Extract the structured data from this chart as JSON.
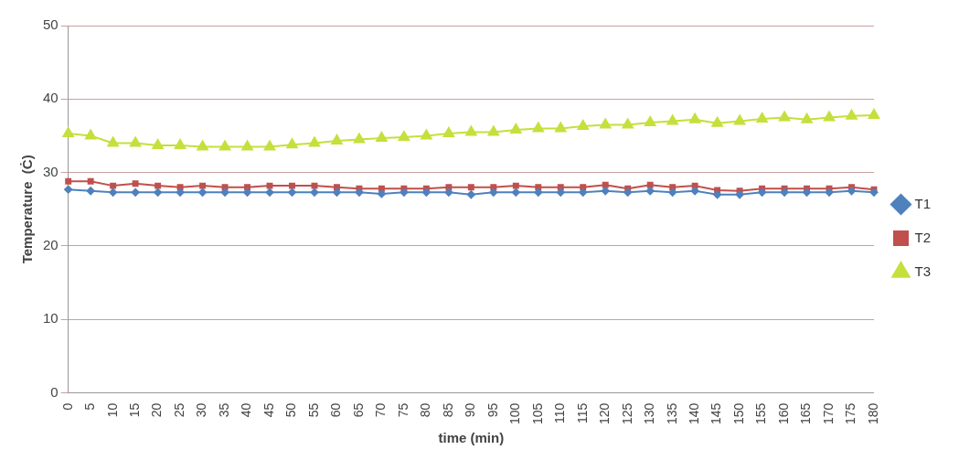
{
  "chart_data": {
    "type": "line",
    "xlabel": "time (min)",
    "ylabel": "Temperature  (Ċ)",
    "categories": [
      "0",
      "5",
      "10",
      "15",
      "20",
      "25",
      "30",
      "35",
      "40",
      "45",
      "50",
      "55",
      "60",
      "65",
      "70",
      "75",
      "80",
      "85",
      "90",
      "95",
      "100",
      "105",
      "110",
      "115",
      "120",
      "125",
      "130",
      "135",
      "140",
      "145",
      "150",
      "155",
      "160",
      "165",
      "170",
      "175",
      "180"
    ],
    "series": [
      {
        "name": "T1",
        "color": "#4f81bd",
        "marker": "diamond",
        "values": [
          27.7,
          27.5,
          27.3,
          27.3,
          27.3,
          27.3,
          27.3,
          27.3,
          27.3,
          27.3,
          27.3,
          27.3,
          27.3,
          27.3,
          27.1,
          27.3,
          27.3,
          27.3,
          27.0,
          27.3,
          27.3,
          27.3,
          27.3,
          27.3,
          27.5,
          27.3,
          27.5,
          27.3,
          27.5,
          27.0,
          27.0,
          27.3,
          27.3,
          27.3,
          27.3,
          27.5,
          27.3
        ]
      },
      {
        "name": "T2",
        "color": "#c0504d",
        "marker": "square",
        "values": [
          28.8,
          28.8,
          28.2,
          28.5,
          28.2,
          28.0,
          28.2,
          28.0,
          28.0,
          28.2,
          28.2,
          28.2,
          28.0,
          27.8,
          27.8,
          27.8,
          27.8,
          28.0,
          28.0,
          28.0,
          28.2,
          28.0,
          28.0,
          28.0,
          28.3,
          27.8,
          28.3,
          28.0,
          28.2,
          27.6,
          27.5,
          27.8,
          27.8,
          27.8,
          27.8,
          28.0,
          27.7
        ]
      },
      {
        "name": "T3",
        "color": "#c4e03c",
        "marker": "triangle",
        "values": [
          35.3,
          35.0,
          34.0,
          34.0,
          33.7,
          33.7,
          33.5,
          33.5,
          33.5,
          33.5,
          33.8,
          34.0,
          34.3,
          34.5,
          34.7,
          34.8,
          35.0,
          35.3,
          35.5,
          35.5,
          35.8,
          36.0,
          36.0,
          36.3,
          36.5,
          36.5,
          36.8,
          37.0,
          37.2,
          36.7,
          37.0,
          37.3,
          37.5,
          37.2,
          37.5,
          37.7,
          37.8
        ]
      }
    ],
    "ylim": [
      0,
      50
    ],
    "yticks": [
      0,
      10,
      20,
      30,
      40,
      50
    ],
    "grid": "y",
    "legend": "right"
  }
}
